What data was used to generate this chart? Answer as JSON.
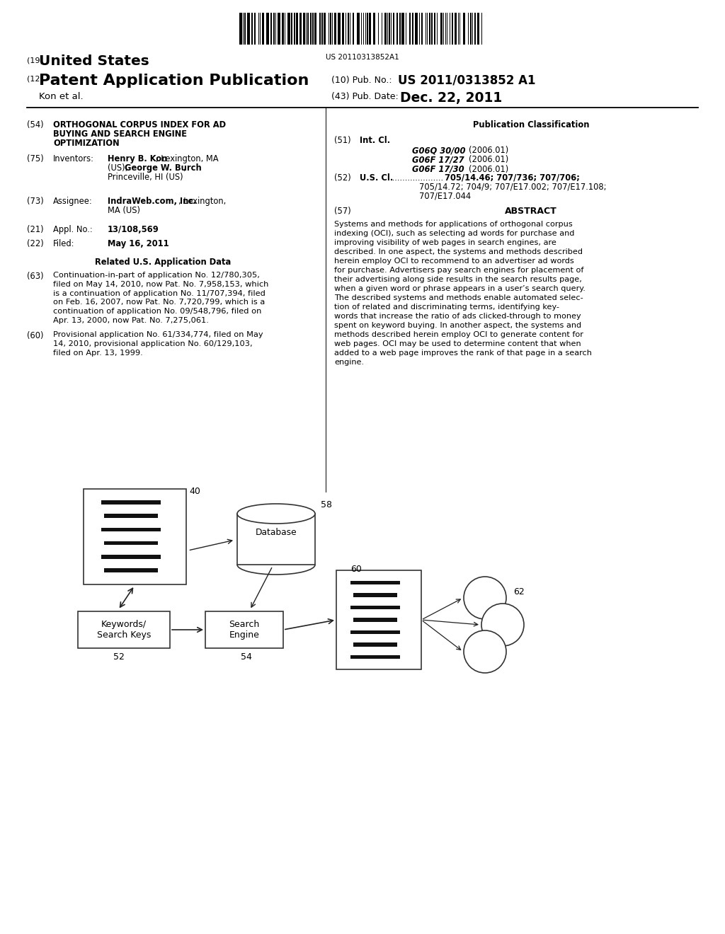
{
  "bg_color": "#ffffff",
  "barcode_text": "US 20110313852A1",
  "header": {
    "country_num": "(19)",
    "country": "United States",
    "pub_type_num": "(12)",
    "pub_type": "Patent Application Publication",
    "inventor": "Kon et al.",
    "pub_num_label": "(10) Pub. No.:",
    "pub_num": "US 2011/0313852 A1",
    "pub_date_label": "(43) Pub. Date:",
    "pub_date": "Dec. 22, 2011"
  },
  "left_col": {
    "title_num": "(54)",
    "title_line1": "ORTHOGONAL CORPUS INDEX FOR AD",
    "title_line2": "BUYING AND SEARCH ENGINE",
    "title_line3": "OPTIMIZATION",
    "inventors_num": "(75)",
    "inventors_label": "Inventors:",
    "inv_bold1": "Henry B. Kon",
    "inv_rest1": ", Lexington, MA",
    "inv_line2a": "(US); ",
    "inv_bold2": "George W. Burch",
    "inv_line2b": ",",
    "inv_line3": "Princeville, HI (US)",
    "assignee_num": "(73)",
    "assignee_label": "Assignee:",
    "asgn_bold": "IndraWeb.com, Inc.",
    "asgn_rest": ", Lexington,",
    "asgn_line2": "MA (US)",
    "appl_num_label": "(21)",
    "appl_label": "Appl. No.:",
    "appl_no": "13/108,569",
    "filed_num": "(22)",
    "filed_label": "Filed:",
    "filed_date": "May 16, 2011",
    "related_title": "Related U.S. Application Data",
    "ref63_num": "(63)",
    "ref63_lines": [
      "Continuation-in-part of application No. 12/780,305,",
      "filed on May 14, 2010, now Pat. No. 7,958,153, which",
      "is a continuation of application No. 11/707,394, filed",
      "on Feb. 16, 2007, now Pat. No. 7,720,799, which is a",
      "continuation of application No. 09/548,796, filed on",
      "Apr. 13, 2000, now Pat. No. 7,275,061."
    ],
    "ref60_num": "(60)",
    "ref60_lines": [
      "Provisional application No. 61/334,774, filed on May",
      "14, 2010, provisional application No. 60/129,103,",
      "filed on Apr. 13, 1999."
    ]
  },
  "right_col": {
    "pub_class_title": "Publication Classification",
    "intcl_num": "(51)",
    "intcl_label": "Int. Cl.",
    "intcl_entries": [
      {
        "code": "G06Q 30/00",
        "year": "(2006.01)"
      },
      {
        "code": "G06F 17/27",
        "year": "(2006.01)"
      },
      {
        "code": "G06F 17/30",
        "year": "(2006.01)"
      }
    ],
    "uscl_num": "(52)",
    "uscl_label": "U.S. Cl.",
    "uscl_dots": ".....................",
    "uscl_line1": "705/14.46; 707/736; 707/706;",
    "uscl_line2": "705/14.72; 704/9; 707/E17.002; 707/E17.108;",
    "uscl_line3": "707/E17.044",
    "abstract_num": "(57)",
    "abstract_title": "ABSTRACT",
    "abstract_lines": [
      "Systems and methods for applications of orthogonal corpus",
      "indexing (OCI), such as selecting ad words for purchase and",
      "improving visibility of web pages in search engines, are",
      "described. In one aspect, the systems and methods described",
      "herein employ OCI to recommend to an advertiser ad words",
      "for purchase. Advertisers pay search engines for placement of",
      "their advertising along side results in the search results page,",
      "when a given word or phrase appears in a user’s search query.",
      "The described systems and methods enable automated selec-",
      "tion of related and discriminating terms, identifying key-",
      "words that increase the ratio of ads clicked-through to money",
      "spent on keyword buying. In another aspect, the systems and",
      "methods described herein employ OCI to generate content for",
      "web pages. OCI may be used to determine content that when",
      "added to a web page improves the rank of that page in a search",
      "engine."
    ]
  },
  "diagram": {
    "label40": "40",
    "label52": "52",
    "label54": "54",
    "label58": "58",
    "label60": "60",
    "label62": "62",
    "box_kw_label": "Keywords/\nSearch Keys",
    "box_se_label": "Search\nEngine",
    "db_label": "Database",
    "doc40_lines": 6,
    "doc60_lines": 7
  }
}
